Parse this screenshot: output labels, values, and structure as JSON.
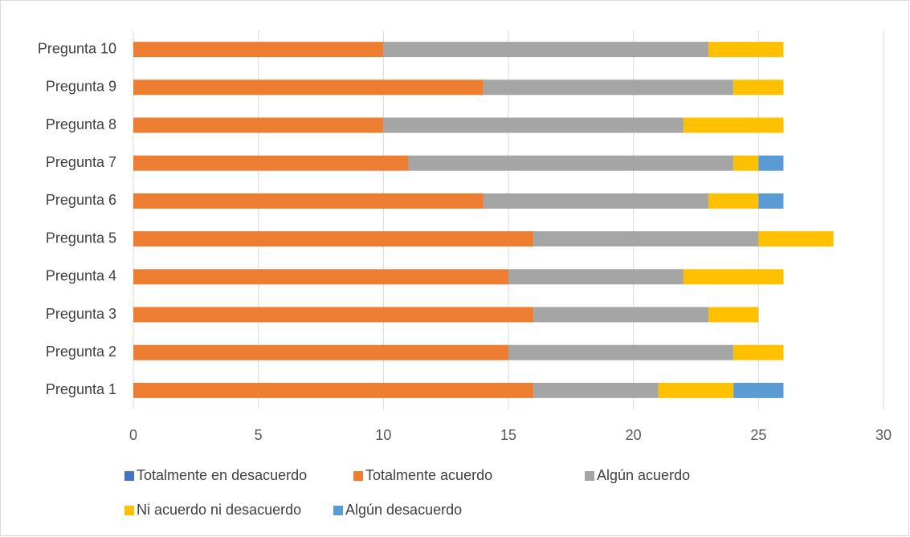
{
  "chart_data": {
    "type": "stacked_barh",
    "categories": [
      "Pregunta 1",
      "Pregunta 2",
      "Pregunta 3",
      "Pregunta 4",
      "Pregunta 5",
      "Pregunta 6",
      "Pregunta 7",
      "Pregunta 8",
      "Pregunta 9",
      "Pregunta 10"
    ],
    "series": [
      {
        "name": "Totalmente en desacuerdo",
        "color": "#4472c4",
        "values": [
          0,
          0,
          0,
          0,
          0,
          0,
          0,
          0,
          0,
          0
        ]
      },
      {
        "name": "Totalmente acuerdo",
        "color": "#ed7d31",
        "values": [
          16,
          15,
          16,
          15,
          16,
          14,
          11,
          10,
          14,
          10
        ]
      },
      {
        "name": "Algún acuerdo",
        "color": "#a5a5a5",
        "values": [
          5,
          9,
          7,
          7,
          9,
          9,
          13,
          12,
          10,
          13
        ]
      },
      {
        "name": "Ni acuerdo ni desacuerdo",
        "color": "#ffc000",
        "values": [
          3,
          2,
          2,
          4,
          3,
          2,
          1,
          4,
          2,
          3
        ]
      },
      {
        "name": "Algún desacuerdo",
        "color": "#5b9bd5",
        "values": [
          2,
          0,
          0,
          0,
          0,
          1,
          1,
          0,
          0,
          0
        ]
      }
    ],
    "xlim": [
      0,
      30
    ],
    "xticks": [
      0,
      5,
      10,
      15,
      20,
      25,
      30
    ],
    "grid": true,
    "legend": "bottom"
  }
}
